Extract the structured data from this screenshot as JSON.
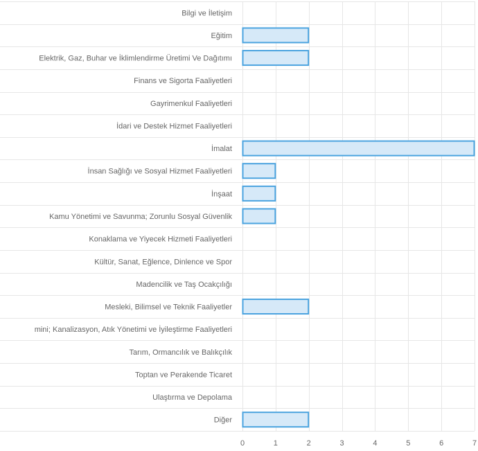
{
  "chart_data": {
    "type": "bar",
    "orientation": "horizontal",
    "categories": [
      "Bilgi ve İletişim",
      "Eğitim",
      "Elektrik, Gaz, Buhar ve İklimlendirme Üretimi Ve Dağıtımı",
      "Finans ve Sigorta Faaliyetleri",
      "Gayrimenkul Faaliyetleri",
      "İdari ve Destek Hizmet Faaliyetleri",
      "İmalat",
      "İnsan Sağlığı ve Sosyal Hizmet Faaliyetleri",
      "İnşaat",
      "Kamu Yönetimi ve Savunma; Zorunlu Sosyal Güvenlik",
      "Konaklama ve Yiyecek Hizmeti Faaliyetleri",
      "Kültür, Sanat, Eğlence, Dinlence ve Spor",
      "Madencilik ve Taş Ocakçılığı",
      "Mesleki, Bilimsel ve Teknik Faaliyetler",
      "mini; Kanalizasyon, Atık Yönetimi ve İyileştirme Faaliyetleri",
      "Tarım, Ormancılık ve Balıkçılık",
      "Toptan ve Perakende Ticaret",
      "Ulaştırma ve Depolama",
      "Diğer"
    ],
    "values": [
      0,
      2,
      2,
      0,
      0,
      0,
      7,
      1,
      1,
      1,
      0,
      0,
      0,
      2,
      0,
      0,
      0,
      0,
      2
    ],
    "xlim": [
      0,
      7
    ],
    "x_ticks": [
      "0",
      "1",
      "2",
      "3",
      "4",
      "5",
      "6",
      "7"
    ],
    "grid": true,
    "colors": {
      "bar_fill": "#d6e9f8",
      "bar_stroke": "#4aa3df",
      "grid": "#e6e6e6",
      "text": "#666666"
    }
  }
}
